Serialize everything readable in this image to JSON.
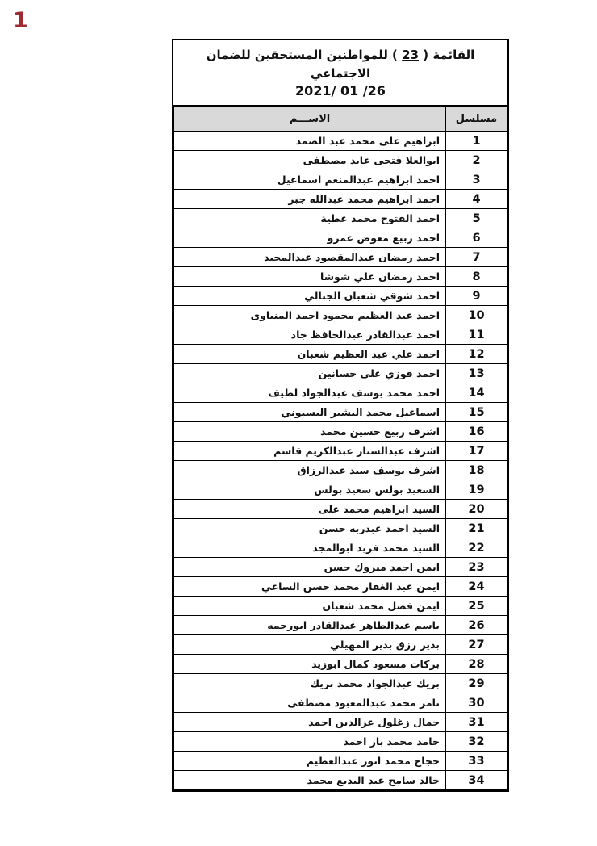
{
  "page": {
    "marker": "1"
  },
  "colors": {
    "header_bg": "#d9d9d9",
    "border": "#000000",
    "marker": "#9e2a33",
    "page_bg": "#ffffff"
  },
  "table": {
    "title": {
      "prefix": "القائمة ( ",
      "number": "23",
      "suffix": " ) للمواطنين المستحقين للضمان الاجتماعي",
      "date": "2021/ 01 /26"
    },
    "headers": {
      "serial": "مسلسل",
      "name": "الاســـم"
    },
    "rows": [
      {
        "serial": "1",
        "name": "ابراهيم على محمد عبد الصمد"
      },
      {
        "serial": "2",
        "name": "ابوالعلا فتحى عابد مصطفى"
      },
      {
        "serial": "3",
        "name": "احمد ابراهيم عبدالمنعم اسماعيل"
      },
      {
        "serial": "4",
        "name": "احمد ابراهيم محمد عبدالله جبر"
      },
      {
        "serial": "5",
        "name": "احمد الفتوح محمد عطية"
      },
      {
        "serial": "6",
        "name": "احمد ربيع معوض عمرو"
      },
      {
        "serial": "7",
        "name": "احمد رمضان عبدالمقصود عبدالمجيد"
      },
      {
        "serial": "8",
        "name": "احمد رمضان علي شوشا"
      },
      {
        "serial": "9",
        "name": "احمد شوقي شعبان الجبالي"
      },
      {
        "serial": "10",
        "name": "احمد عبد العظيم محمود احمد المنياوى"
      },
      {
        "serial": "11",
        "name": "احمد عبدالقادر عبدالحافظ جاد"
      },
      {
        "serial": "12",
        "name": "احمد علي عبد العظيم شعبان"
      },
      {
        "serial": "13",
        "name": "احمد فوزي علي حسانين"
      },
      {
        "serial": "14",
        "name": "احمد محمد يوسف عبدالجواد لطيف"
      },
      {
        "serial": "15",
        "name": "اسماعيل محمد البشير البسيوني"
      },
      {
        "serial": "16",
        "name": "اشرف ربيع حسين محمد"
      },
      {
        "serial": "17",
        "name": "اشرف عبدالستار عبدالكريم قاسم"
      },
      {
        "serial": "18",
        "name": "اشرف يوسف سيد عبدالرزاق"
      },
      {
        "serial": "19",
        "name": "السعيد بولس سعيد بولس"
      },
      {
        "serial": "20",
        "name": "السيد ابراهيم محمد على"
      },
      {
        "serial": "21",
        "name": "السيد احمد عبدربه حسن"
      },
      {
        "serial": "22",
        "name": "السيد محمد فريد ابوالمجد"
      },
      {
        "serial": "23",
        "name": "ايمن احمد مبروك حسن"
      },
      {
        "serial": "24",
        "name": "ايمن عبد الغفار محمد حسن الساعي"
      },
      {
        "serial": "25",
        "name": "ايمن فضل محمد شعبان"
      },
      {
        "serial": "26",
        "name": "باسم عبدالظاهر عبدالقادر ابورحمه"
      },
      {
        "serial": "27",
        "name": "بدير رزق بدير المهيلي"
      },
      {
        "serial": "28",
        "name": "بركات مسعود كمال ابوزيد"
      },
      {
        "serial": "29",
        "name": "بريك عبدالجواد محمد بريك"
      },
      {
        "serial": "30",
        "name": "تامر محمد عبدالمعبود مصطفى"
      },
      {
        "serial": "31",
        "name": "جمال زغلول عزالدين احمد"
      },
      {
        "serial": "32",
        "name": "حامد محمد باز احمد"
      },
      {
        "serial": "33",
        "name": "حجاج محمد انور عبدالعظيم"
      },
      {
        "serial": "34",
        "name": "خالد سامح عبد البديع محمد"
      }
    ]
  }
}
